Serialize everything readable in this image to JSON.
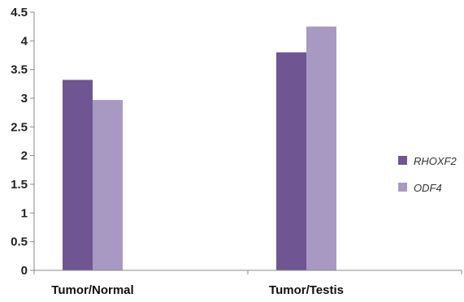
{
  "chart_data": {
    "type": "bar",
    "categories": [
      "Tumor/Normal",
      "Tumor/Testis"
    ],
    "series": [
      {
        "name": "RHOXF2",
        "values": [
          3.32,
          3.8
        ],
        "color": "#6f5592"
      },
      {
        "name": "ODF4",
        "values": [
          2.97,
          4.25
        ],
        "color": "#a899c3"
      }
    ],
    "title": "",
    "xlabel": "",
    "ylabel": "",
    "ylim": [
      0,
      4.5
    ],
    "yticks": [
      "0",
      "0.5",
      "1",
      "1.5",
      "2",
      "2.5",
      "3",
      "3.5",
      "4",
      "4.5"
    ],
    "grid": false,
    "legend_position": "right"
  }
}
